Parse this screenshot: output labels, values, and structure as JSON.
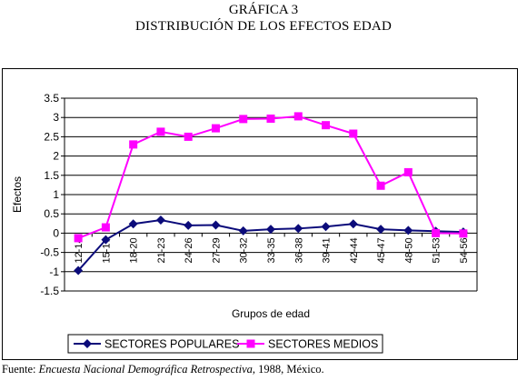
{
  "heading": {
    "line1": "GRÁFICA 3",
    "line2": "DISTRIBUCIÓN DE LOS EFECTOS EDAD"
  },
  "source": {
    "prefix": "Fuente: ",
    "title": "Encuesta Nacional Demográfica Retrospectiva",
    "suffix": ", 1988, México."
  },
  "colors": {
    "popular": "#0b0b7a",
    "medios": "#ff00ff",
    "grid": "#000000"
  },
  "chart_data": {
    "type": "line",
    "title": "",
    "xlabel": "Grupos de edad",
    "ylabel": "Efectos",
    "ylim": [
      -1.5,
      3.5
    ],
    "yticks": [
      "3.5",
      "3",
      "2.5",
      "2",
      "1.5",
      "1",
      "0.5",
      "0",
      "-0.5",
      "-1",
      "-1.5"
    ],
    "grid": true,
    "legend_position": "bottom",
    "categories": [
      "12-14",
      "15-17",
      "18-20",
      "21-23",
      "24-26",
      "27-29",
      "30-32",
      "33-35",
      "36-38",
      "39-41",
      "42-44",
      "45-47",
      "48-50",
      "51-53",
      "54-56"
    ],
    "series": [
      {
        "name": "SECTORES POPULARES",
        "marker": "diamond",
        "color": "#0b0b7a",
        "values": [
          -0.97,
          -0.17,
          0.24,
          0.34,
          0.2,
          0.21,
          0.06,
          0.1,
          0.12,
          0.17,
          0.24,
          0.1,
          0.07,
          0.05,
          0.03
        ]
      },
      {
        "name": "SECTORES MEDIOS",
        "marker": "square",
        "color": "#ff00ff",
        "values": [
          -0.13,
          0.15,
          2.3,
          2.63,
          2.5,
          2.72,
          2.96,
          2.97,
          3.03,
          2.8,
          2.58,
          1.23,
          1.58,
          0.0,
          -0.01
        ]
      }
    ]
  }
}
